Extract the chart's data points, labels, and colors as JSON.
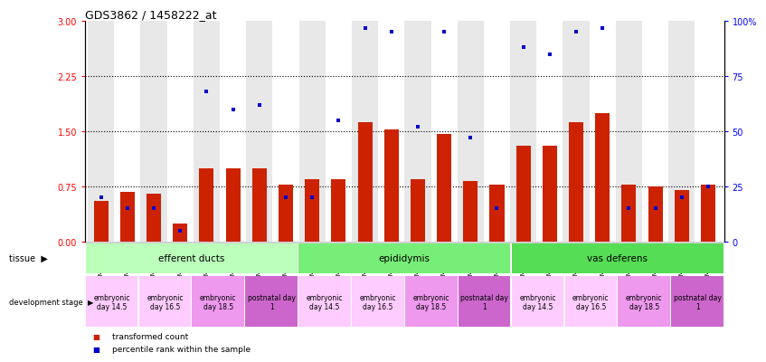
{
  "title": "GDS3862 / 1458222_at",
  "samples": [
    "GSM560923",
    "GSM560924",
    "GSM560925",
    "GSM560926",
    "GSM560927",
    "GSM560928",
    "GSM560929",
    "GSM560930",
    "GSM560931",
    "GSM560932",
    "GSM560933",
    "GSM560934",
    "GSM560935",
    "GSM560936",
    "GSM560937",
    "GSM560938",
    "GSM560939",
    "GSM560940",
    "GSM560941",
    "GSM560942",
    "GSM560943",
    "GSM560944",
    "GSM560945",
    "GSM560946"
  ],
  "transformed_count": [
    0.55,
    0.68,
    0.65,
    0.25,
    1.0,
    1.0,
    1.0,
    0.78,
    0.85,
    0.85,
    1.62,
    1.52,
    0.85,
    1.47,
    0.82,
    0.77,
    1.3,
    1.3,
    1.63,
    1.75,
    0.77,
    0.75,
    0.7,
    0.78
  ],
  "percentile_rank": [
    20,
    15,
    15,
    5,
    68,
    60,
    62,
    20,
    20,
    55,
    97,
    95,
    52,
    95,
    47,
    15,
    88,
    85,
    95,
    97,
    15,
    15,
    20,
    25
  ],
  "bar_color": "#cc2200",
  "dot_color": "#0000cc",
  "left_ylim": [
    0,
    3.0
  ],
  "left_yticks": [
    0,
    0.75,
    1.5,
    2.25,
    3.0
  ],
  "right_ylim": [
    0,
    100
  ],
  "right_yticks": [
    0,
    25,
    50,
    75,
    100
  ],
  "right_yticklabels": [
    "0",
    "25",
    "50",
    "75",
    "100%"
  ],
  "hlines": [
    0.75,
    1.5,
    2.25
  ],
  "tissues": [
    {
      "label": "efferent ducts",
      "start": 0,
      "end": 8,
      "color": "#bbffbb"
    },
    {
      "label": "epididymis",
      "start": 8,
      "end": 16,
      "color": "#66ee66"
    },
    {
      "label": "vas deferens",
      "start": 16,
      "end": 24,
      "color": "#44cc44"
    }
  ],
  "dev_stages": [
    {
      "label": "embryonic\nday 14.5",
      "start": 0,
      "end": 2,
      "color": "#ffccff"
    },
    {
      "label": "embryonic\nday 16.5",
      "start": 2,
      "end": 4,
      "color": "#ffccff"
    },
    {
      "label": "embryonic\nday 18.5",
      "start": 4,
      "end": 6,
      "color": "#ee99ee"
    },
    {
      "label": "postnatal day\n1",
      "start": 6,
      "end": 8,
      "color": "#cc66cc"
    },
    {
      "label": "embryonic\nday 14.5",
      "start": 8,
      "end": 10,
      "color": "#ffccff"
    },
    {
      "label": "embryonic\nday 16.5",
      "start": 10,
      "end": 12,
      "color": "#ffccff"
    },
    {
      "label": "embryonic\nday 18.5",
      "start": 12,
      "end": 14,
      "color": "#ee99ee"
    },
    {
      "label": "postnatal day\n1",
      "start": 14,
      "end": 16,
      "color": "#cc66cc"
    },
    {
      "label": "embryonic\nday 14.5",
      "start": 16,
      "end": 18,
      "color": "#ffccff"
    },
    {
      "label": "embryonic\nday 16.5",
      "start": 18,
      "end": 20,
      "color": "#ffccff"
    },
    {
      "label": "embryonic\nday 18.5",
      "start": 20,
      "end": 22,
      "color": "#ee99ee"
    },
    {
      "label": "postnatal day\n1",
      "start": 22,
      "end": 24,
      "color": "#cc66cc"
    }
  ],
  "col_bg_even": "#e8e8e8",
  "col_bg_odd": "#ffffff",
  "xtick_bg": "#cccccc"
}
